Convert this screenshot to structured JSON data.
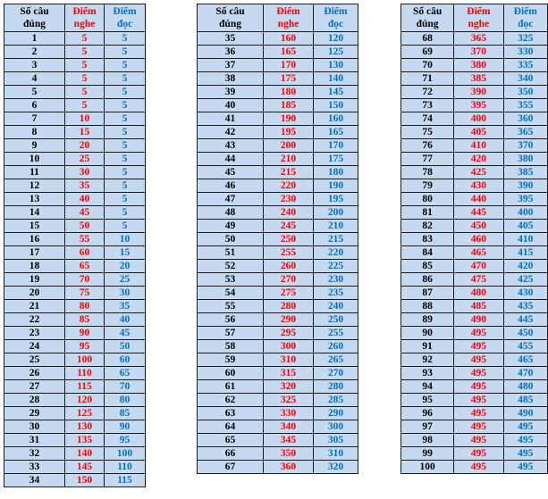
{
  "headers": {
    "num_line1": "Số câu",
    "num_line2": "đúng",
    "listen_line1": "Điểm",
    "listen_line2": "nghe",
    "read_line1": "Điểm",
    "read_line2": "đọc"
  },
  "colors": {
    "header_fill": "#c5d9f1",
    "listening": "#ff0000",
    "reading": "#0070c0",
    "count": "#000000"
  },
  "tables": [
    [
      [
        1,
        5,
        5
      ],
      [
        2,
        5,
        5
      ],
      [
        3,
        5,
        5
      ],
      [
        4,
        5,
        5
      ],
      [
        5,
        5,
        5
      ],
      [
        6,
        5,
        5
      ],
      [
        7,
        10,
        5
      ],
      [
        8,
        15,
        5
      ],
      [
        9,
        20,
        5
      ],
      [
        10,
        25,
        5
      ],
      [
        11,
        30,
        5
      ],
      [
        12,
        35,
        5
      ],
      [
        13,
        40,
        5
      ],
      [
        14,
        45,
        5
      ],
      [
        15,
        50,
        5
      ],
      [
        16,
        55,
        10
      ],
      [
        17,
        60,
        15
      ],
      [
        18,
        65,
        20
      ],
      [
        19,
        70,
        25
      ],
      [
        20,
        75,
        30
      ],
      [
        21,
        80,
        35
      ],
      [
        22,
        85,
        40
      ],
      [
        23,
        90,
        45
      ],
      [
        24,
        95,
        50
      ],
      [
        25,
        100,
        60
      ],
      [
        26,
        110,
        65
      ],
      [
        27,
        115,
        70
      ],
      [
        28,
        120,
        80
      ],
      [
        29,
        125,
        85
      ],
      [
        30,
        130,
        90
      ],
      [
        31,
        135,
        95
      ],
      [
        32,
        140,
        100
      ],
      [
        33,
        145,
        110
      ],
      [
        34,
        150,
        115
      ]
    ],
    [
      [
        35,
        160,
        120
      ],
      [
        36,
        165,
        125
      ],
      [
        37,
        170,
        130
      ],
      [
        38,
        175,
        140
      ],
      [
        39,
        180,
        145
      ],
      [
        40,
        185,
        150
      ],
      [
        41,
        190,
        160
      ],
      [
        42,
        195,
        165
      ],
      [
        43,
        200,
        170
      ],
      [
        44,
        210,
        175
      ],
      [
        45,
        215,
        180
      ],
      [
        46,
        220,
        190
      ],
      [
        47,
        230,
        195
      ],
      [
        48,
        240,
        200
      ],
      [
        49,
        245,
        210
      ],
      [
        50,
        250,
        215
      ],
      [
        51,
        255,
        220
      ],
      [
        52,
        260,
        225
      ],
      [
        53,
        270,
        230
      ],
      [
        54,
        275,
        235
      ],
      [
        55,
        280,
        240
      ],
      [
        56,
        290,
        250
      ],
      [
        57,
        295,
        255
      ],
      [
        58,
        300,
        260
      ],
      [
        59,
        310,
        265
      ],
      [
        60,
        315,
        270
      ],
      [
        61,
        320,
        280
      ],
      [
        62,
        325,
        285
      ],
      [
        63,
        330,
        290
      ],
      [
        64,
        340,
        300
      ],
      [
        65,
        345,
        305
      ],
      [
        66,
        350,
        310
      ],
      [
        67,
        360,
        320
      ]
    ],
    [
      [
        68,
        365,
        325
      ],
      [
        69,
        370,
        330
      ],
      [
        70,
        380,
        335
      ],
      [
        71,
        385,
        340
      ],
      [
        72,
        390,
        350
      ],
      [
        73,
        395,
        355
      ],
      [
        74,
        400,
        360
      ],
      [
        75,
        405,
        365
      ],
      [
        76,
        410,
        370
      ],
      [
        77,
        420,
        380
      ],
      [
        78,
        425,
        385
      ],
      [
        79,
        430,
        390
      ],
      [
        80,
        440,
        395
      ],
      [
        81,
        445,
        400
      ],
      [
        82,
        450,
        405
      ],
      [
        83,
        460,
        410
      ],
      [
        84,
        465,
        415
      ],
      [
        85,
        470,
        420
      ],
      [
        86,
        475,
        425
      ],
      [
        87,
        480,
        430
      ],
      [
        88,
        485,
        435
      ],
      [
        89,
        490,
        445
      ],
      [
        90,
        495,
        450
      ],
      [
        91,
        495,
        455
      ],
      [
        92,
        495,
        465
      ],
      [
        93,
        495,
        470
      ],
      [
        94,
        495,
        480
      ],
      [
        95,
        495,
        485
      ],
      [
        96,
        495,
        490
      ],
      [
        97,
        495,
        495
      ],
      [
        98,
        495,
        495
      ],
      [
        99,
        495,
        495
      ],
      [
        100,
        495,
        495
      ]
    ]
  ]
}
